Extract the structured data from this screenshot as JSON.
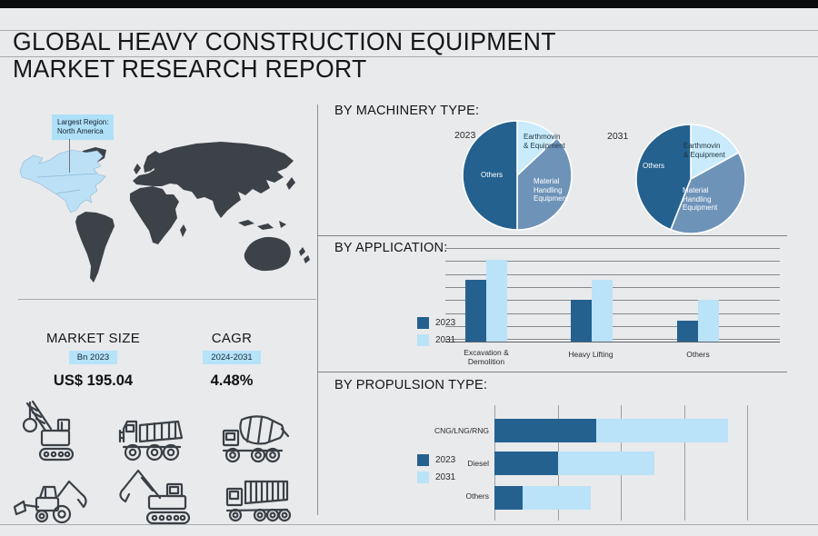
{
  "header": {
    "title_line1": "GLOBAL HEAVY CONSTRUCTION EQUIPMENT",
    "title_line2": "MARKET RESEARCH REPORT"
  },
  "map": {
    "callout_line1": "Largest Region:",
    "callout_line2": "North America",
    "highlighted_region": "North America"
  },
  "stats": {
    "market_size": {
      "label": "MARKET SIZE",
      "badge": "Bn 2023",
      "value": "US$ 195.04"
    },
    "cagr": {
      "label": "CAGR",
      "badge": "2024-2031",
      "value": "4.48%"
    }
  },
  "equipment_icons": [
    "wrecking-ball-crane-icon",
    "articulated-dump-truck-icon",
    "concrete-mixer-truck-icon",
    "backhoe-loader-icon",
    "excavator-icon",
    "tipper-truck-icon"
  ],
  "colors": {
    "accent_dark": "#24618F",
    "accent_light": "#BAE2F8",
    "pie_mid": "#6E93B8",
    "pie_light": "#C9EBFB",
    "highlight_badge": "#AEE0F8",
    "map_land": "#3C4247",
    "map_highlight": "#BCE0F6"
  },
  "chart_data": [
    {
      "id": "machinery",
      "type": "pie",
      "title": "BY MACHINERY TYPE:",
      "pies": [
        {
          "label": "2023",
          "slices": [
            {
              "name": "Earthmovin & Equipment",
              "value": 13,
              "color": "#C9EBFB",
              "text": "#1D3340"
            },
            {
              "name": "Material Handling Equipment",
              "value": 37,
              "color": "#6E93B8",
              "text": "#FFFFFF"
            },
            {
              "name": "Others",
              "value": 50,
              "color": "#24618F",
              "text": "#FFFFFF"
            }
          ]
        },
        {
          "label": "2031",
          "slices": [
            {
              "name": "Earthmovin & Equipment",
              "value": 17,
              "color": "#C9EBFB",
              "text": "#1D3340"
            },
            {
              "name": "Material Handling Equipment",
              "value": 39,
              "color": "#6E93B8",
              "text": "#FFFFFF"
            },
            {
              "name": "Others",
              "value": 44,
              "color": "#24618F",
              "text": "#FFFFFF"
            }
          ]
        }
      ]
    },
    {
      "id": "application",
      "type": "bar",
      "title": "BY APPLICATION:",
      "categories": [
        "Excavation & Demolition",
        "Heavy Lifting",
        "Others"
      ],
      "series": [
        {
          "name": "2023",
          "color": "#24618F",
          "values": [
            65,
            44,
            22
          ]
        },
        {
          "name": "2031",
          "color": "#BAE2F8",
          "values": [
            87,
            65,
            44
          ]
        }
      ],
      "ylim": [
        0,
        100
      ],
      "grid": true,
      "legend_position": "left"
    },
    {
      "id": "propulsion",
      "type": "bar-horizontal-stacked",
      "title": "BY PROPULSION TYPE:",
      "categories": [
        "CNG/LNG/RNG",
        "Diesel",
        "Others"
      ],
      "series": [
        {
          "name": "2023",
          "color": "#24618F",
          "values": [
            40,
            25,
            11
          ]
        },
        {
          "name": "2031",
          "color": "#BAE2F8",
          "values": [
            52,
            38,
            27
          ]
        }
      ],
      "xlim": [
        0,
        100
      ],
      "grid": true,
      "legend_position": "left"
    }
  ]
}
